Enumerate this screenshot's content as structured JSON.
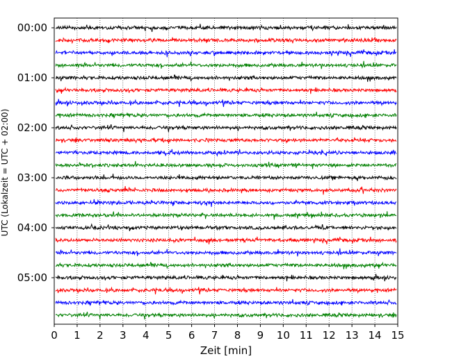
{
  "chart_data": {
    "type": "line",
    "title": "",
    "xlabel": "Zeit  [min]",
    "ylabel": "UTC (Lokalzeit = UTC + 02:00)",
    "xlim": [
      0,
      15
    ],
    "x_ticks": [
      "0",
      "1",
      "2",
      "3",
      "4",
      "5",
      "6",
      "7",
      "8",
      "9",
      "10",
      "11",
      "12",
      "13",
      "14",
      "15"
    ],
    "y_tick_labels": [
      "00:00",
      "01:00",
      "02:00",
      "03:00",
      "04:00",
      "05:00"
    ],
    "grid": {
      "x": true,
      "style": "dotted",
      "y": false
    },
    "trace_interval_minutes": 15,
    "trace_colors": [
      "#000000",
      "#ff0000",
      "#0000ff",
      "#008000"
    ],
    "traces": [
      {
        "start": "00:00",
        "color": "#000000"
      },
      {
        "start": "00:15",
        "color": "#ff0000"
      },
      {
        "start": "00:30",
        "color": "#0000ff"
      },
      {
        "start": "00:45",
        "color": "#008000"
      },
      {
        "start": "01:00",
        "color": "#000000"
      },
      {
        "start": "01:15",
        "color": "#ff0000"
      },
      {
        "start": "01:30",
        "color": "#0000ff"
      },
      {
        "start": "01:45",
        "color": "#008000"
      },
      {
        "start": "02:00",
        "color": "#000000"
      },
      {
        "start": "02:15",
        "color": "#ff0000"
      },
      {
        "start": "02:30",
        "color": "#0000ff"
      },
      {
        "start": "02:45",
        "color": "#008000"
      },
      {
        "start": "03:00",
        "color": "#000000"
      },
      {
        "start": "03:15",
        "color": "#ff0000"
      },
      {
        "start": "03:30",
        "color": "#0000ff"
      },
      {
        "start": "03:45",
        "color": "#008000"
      },
      {
        "start": "04:00",
        "color": "#000000"
      },
      {
        "start": "04:15",
        "color": "#ff0000"
      },
      {
        "start": "04:30",
        "color": "#0000ff"
      },
      {
        "start": "04:45",
        "color": "#008000"
      },
      {
        "start": "05:00",
        "color": "#000000"
      },
      {
        "start": "05:15",
        "color": "#ff0000"
      },
      {
        "start": "05:30",
        "color": "#0000ff"
      },
      {
        "start": "05:45",
        "color": "#008000"
      }
    ]
  }
}
